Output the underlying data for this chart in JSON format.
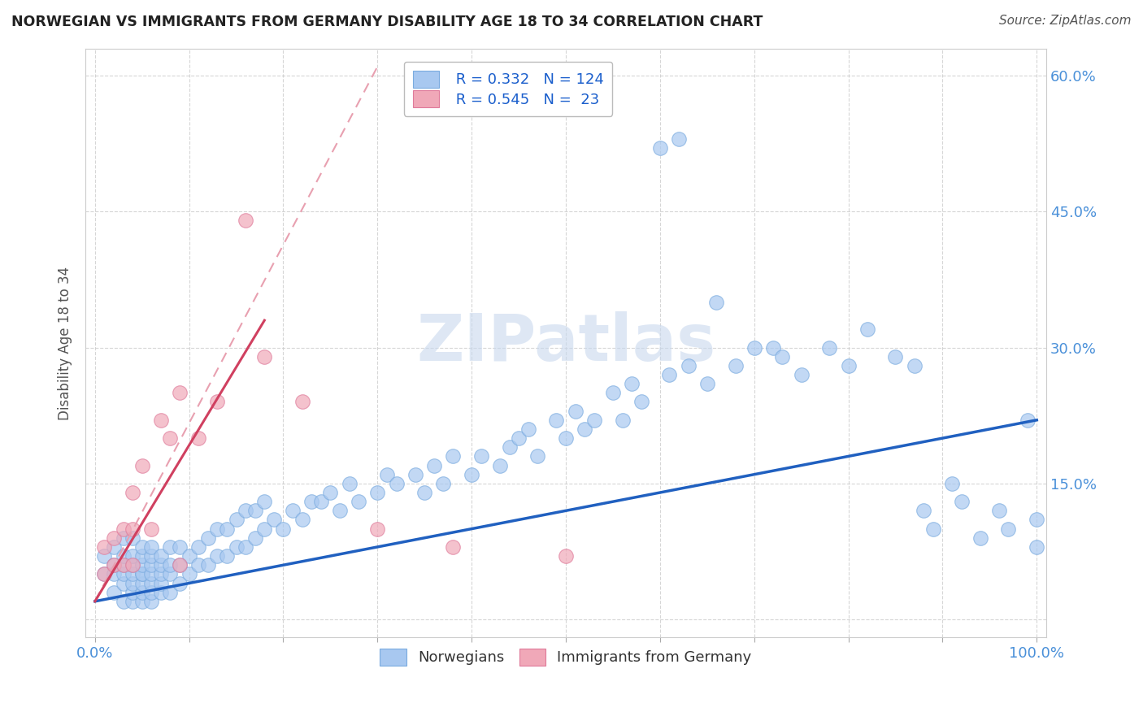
{
  "title": "NORWEGIAN VS IMMIGRANTS FROM GERMANY DISABILITY AGE 18 TO 34 CORRELATION CHART",
  "source": "Source: ZipAtlas.com",
  "ylabel": "Disability Age 18 to 34",
  "watermark": "ZIPatlas",
  "xlim": [
    -0.01,
    1.01
  ],
  "ylim": [
    -0.02,
    0.63
  ],
  "y_ticks": [
    0.0,
    0.15,
    0.3,
    0.45,
    0.6
  ],
  "y_tick_labels": [
    "",
    "15.0%",
    "30.0%",
    "45.0%",
    "60.0%"
  ],
  "x_ticks": [
    0.0,
    0.1,
    0.2,
    0.3,
    0.4,
    0.5,
    0.6,
    0.7,
    0.8,
    0.9,
    1.0
  ],
  "legend_R1": "0.332",
  "legend_N1": "124",
  "legend_R2": "0.545",
  "legend_N2": "23",
  "color_norwegian": "#a8c8f0",
  "color_norwegian_edge": "#7aabdf",
  "color_german": "#f0a8b8",
  "color_german_edge": "#df7a9a",
  "color_line_norwegian": "#2060c0",
  "color_line_german": "#d04060",
  "color_line_german_dashed": "#e8a0b0",
  "color_title": "#222222",
  "color_source": "#555555",
  "color_axis_right": "#4a90d9",
  "color_watermark": "#c8d8ee",
  "color_legend_values": "#1a5ecc",
  "background_color": "#ffffff",
  "grid_color": "#cccccc",
  "nor_trend": [
    0.0,
    1.0,
    0.02,
    0.22
  ],
  "ger_trend_solid": [
    0.0,
    0.18,
    0.02,
    0.33
  ],
  "ger_trend_dashed": [
    0.0,
    0.3,
    0.02,
    0.61
  ],
  "norwegian_x": [
    0.01,
    0.01,
    0.02,
    0.02,
    0.02,
    0.02,
    0.03,
    0.03,
    0.03,
    0.03,
    0.03,
    0.03,
    0.04,
    0.04,
    0.04,
    0.04,
    0.04,
    0.04,
    0.04,
    0.05,
    0.05,
    0.05,
    0.05,
    0.05,
    0.05,
    0.05,
    0.05,
    0.06,
    0.06,
    0.06,
    0.06,
    0.06,
    0.06,
    0.06,
    0.07,
    0.07,
    0.07,
    0.07,
    0.07,
    0.08,
    0.08,
    0.08,
    0.08,
    0.09,
    0.09,
    0.09,
    0.1,
    0.1,
    0.11,
    0.11,
    0.12,
    0.12,
    0.13,
    0.13,
    0.14,
    0.14,
    0.15,
    0.15,
    0.16,
    0.16,
    0.17,
    0.17,
    0.18,
    0.18,
    0.19,
    0.2,
    0.21,
    0.22,
    0.23,
    0.24,
    0.25,
    0.26,
    0.27,
    0.28,
    0.3,
    0.31,
    0.32,
    0.34,
    0.35,
    0.36,
    0.37,
    0.38,
    0.4,
    0.41,
    0.43,
    0.44,
    0.45,
    0.46,
    0.47,
    0.49,
    0.5,
    0.51,
    0.52,
    0.53,
    0.55,
    0.56,
    0.57,
    0.58,
    0.6,
    0.61,
    0.62,
    0.63,
    0.65,
    0.66,
    0.68,
    0.7,
    0.72,
    0.73,
    0.75,
    0.78,
    0.8,
    0.82,
    0.85,
    0.87,
    0.88,
    0.89,
    0.91,
    0.92,
    0.94,
    0.96,
    0.97,
    0.99,
    1.0,
    1.0
  ],
  "norwegian_y": [
    0.05,
    0.07,
    0.03,
    0.05,
    0.06,
    0.08,
    0.02,
    0.04,
    0.05,
    0.06,
    0.07,
    0.09,
    0.02,
    0.03,
    0.04,
    0.05,
    0.06,
    0.07,
    0.09,
    0.02,
    0.03,
    0.04,
    0.05,
    0.05,
    0.06,
    0.07,
    0.08,
    0.02,
    0.03,
    0.04,
    0.05,
    0.06,
    0.07,
    0.08,
    0.03,
    0.04,
    0.05,
    0.06,
    0.07,
    0.03,
    0.05,
    0.06,
    0.08,
    0.04,
    0.06,
    0.08,
    0.05,
    0.07,
    0.06,
    0.08,
    0.06,
    0.09,
    0.07,
    0.1,
    0.07,
    0.1,
    0.08,
    0.11,
    0.08,
    0.12,
    0.09,
    0.12,
    0.1,
    0.13,
    0.11,
    0.1,
    0.12,
    0.11,
    0.13,
    0.13,
    0.14,
    0.12,
    0.15,
    0.13,
    0.14,
    0.16,
    0.15,
    0.16,
    0.14,
    0.17,
    0.15,
    0.18,
    0.16,
    0.18,
    0.17,
    0.19,
    0.2,
    0.21,
    0.18,
    0.22,
    0.2,
    0.23,
    0.21,
    0.22,
    0.25,
    0.22,
    0.26,
    0.24,
    0.52,
    0.27,
    0.53,
    0.28,
    0.26,
    0.35,
    0.28,
    0.3,
    0.3,
    0.29,
    0.27,
    0.3,
    0.28,
    0.32,
    0.29,
    0.28,
    0.12,
    0.1,
    0.15,
    0.13,
    0.09,
    0.12,
    0.1,
    0.22,
    0.11,
    0.08
  ],
  "german_x": [
    0.01,
    0.01,
    0.02,
    0.02,
    0.03,
    0.03,
    0.04,
    0.04,
    0.04,
    0.05,
    0.06,
    0.07,
    0.08,
    0.09,
    0.09,
    0.11,
    0.13,
    0.16,
    0.18,
    0.22,
    0.3,
    0.38,
    0.5
  ],
  "german_y": [
    0.05,
    0.08,
    0.06,
    0.09,
    0.06,
    0.1,
    0.06,
    0.1,
    0.14,
    0.17,
    0.1,
    0.22,
    0.2,
    0.06,
    0.25,
    0.2,
    0.24,
    0.44,
    0.29,
    0.24,
    0.1,
    0.08,
    0.07
  ]
}
